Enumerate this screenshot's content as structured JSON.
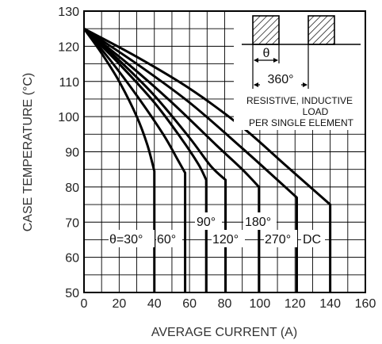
{
  "chart_data": {
    "type": "line",
    "xlabel": "AVERAGE CURRENT (A)",
    "ylabel": "CASE TEMPERATURE (°C)",
    "xlim": [
      0,
      160
    ],
    "ylim": [
      50,
      130
    ],
    "xticks": [
      "0",
      "20",
      "40",
      "60",
      "80",
      "100",
      "120",
      "140",
      "160"
    ],
    "yticks": [
      "50",
      "60",
      "70",
      "80",
      "90",
      "100",
      "110",
      "120",
      "130"
    ],
    "grid": true,
    "series": [
      {
        "name": "θ=30°",
        "values": [
          [
            0,
            125
          ],
          [
            10,
            118
          ],
          [
            20,
            110
          ],
          [
            30,
            100
          ],
          [
            36,
            92
          ],
          [
            40,
            84.5
          ],
          [
            40,
            50
          ]
        ]
      },
      {
        "name": "60°",
        "values": [
          [
            0,
            125
          ],
          [
            15,
            116
          ],
          [
            30,
            106
          ],
          [
            45,
            95
          ],
          [
            53,
            88
          ],
          [
            57.5,
            84
          ],
          [
            57.5,
            50
          ]
        ]
      },
      {
        "name": "90°",
        "values": [
          [
            0,
            125
          ],
          [
            20,
            115
          ],
          [
            40,
            104
          ],
          [
            55,
            94
          ],
          [
            65,
            86.5
          ],
          [
            69.5,
            82
          ],
          [
            69.5,
            50
          ]
        ]
      },
      {
        "name": "120°",
        "values": [
          [
            0,
            125
          ],
          [
            20,
            116
          ],
          [
            40,
            106
          ],
          [
            60,
            94
          ],
          [
            72,
            86
          ],
          [
            80.5,
            82
          ],
          [
            80.5,
            50
          ]
        ]
      },
      {
        "name": "180°",
        "values": [
          [
            0,
            125
          ],
          [
            25,
            115
          ],
          [
            50,
            104
          ],
          [
            75,
            92
          ],
          [
            90,
            85
          ],
          [
            99.5,
            80
          ],
          [
            99.5,
            50
          ]
        ]
      },
      {
        "name": "270°",
        "values": [
          [
            0,
            125
          ],
          [
            30,
            115
          ],
          [
            60,
            104
          ],
          [
            90,
            91
          ],
          [
            110,
            82
          ],
          [
            121,
            77
          ],
          [
            121,
            50
          ]
        ]
      },
      {
        "name": "DC",
        "values": [
          [
            0,
            125
          ],
          [
            30,
            117
          ],
          [
            60,
            108
          ],
          [
            90,
            97
          ],
          [
            115,
            86
          ],
          [
            140,
            75
          ],
          [
            140,
            50
          ]
        ]
      }
    ]
  },
  "inset": {
    "theta": "θ",
    "period": "360°",
    "line1": "RESISTIVE, INDUCTIVE",
    "line2": "LOAD",
    "line3": "PER SINGLE ELEMENT"
  }
}
